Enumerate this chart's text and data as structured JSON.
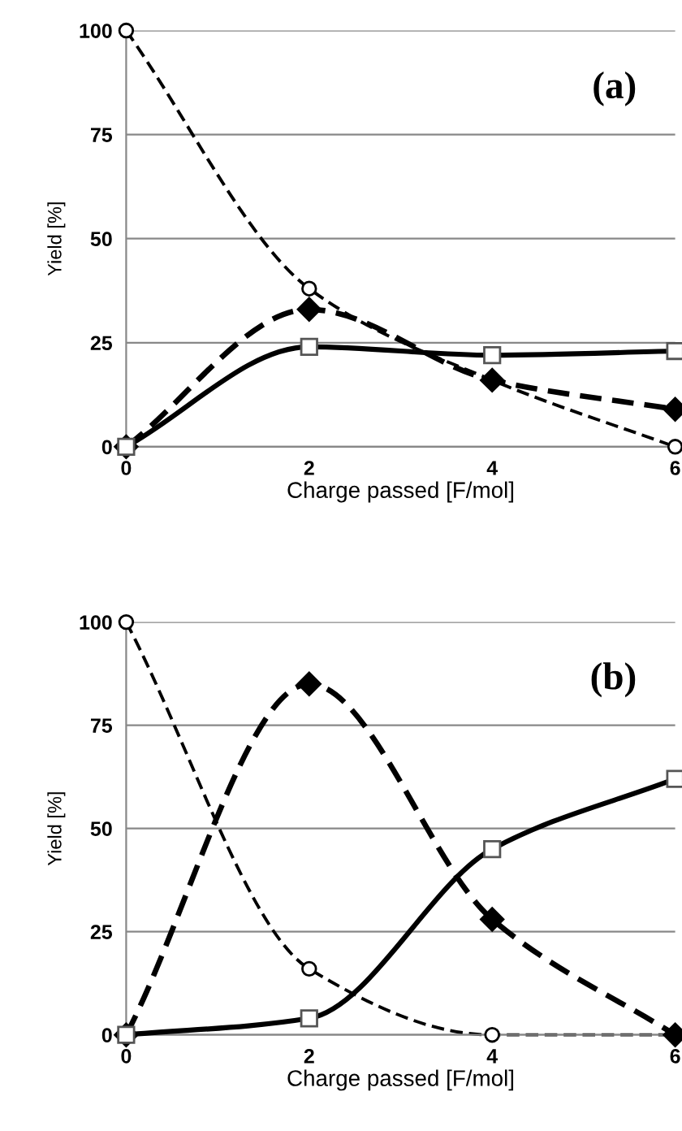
{
  "chart_data": [
    {
      "type": "line",
      "xlabel": "Charge passed [F/mol]",
      "ylabel": "Yield [%]",
      "x": [
        0,
        2,
        4,
        6
      ],
      "xlim": [
        0,
        6
      ],
      "xticks": [
        0,
        2,
        4,
        6
      ],
      "ylim": [
        0,
        100
      ],
      "yticks": [
        0,
        25,
        50,
        75,
        100
      ],
      "grid": "y",
      "annotations": [
        "(a)"
      ],
      "series": [
        {
          "color": "#000000",
          "marker": "circle",
          "line_style": "dashed",
          "values": [
            100,
            38,
            16,
            0
          ]
        },
        {
          "color": "#000000",
          "marker": "diamond",
          "line_style": "dashed",
          "values": [
            0,
            33,
            16,
            9
          ]
        },
        {
          "color": "#000000",
          "marker": "square",
          "line_style": "solid",
          "values": [
            0,
            24,
            22,
            23
          ]
        }
      ]
    },
    {
      "type": "line",
      "xlabel": "Charge passed [F/mol]",
      "ylabel": "Yield [%]",
      "x": [
        0,
        2,
        4,
        6
      ],
      "xlim": [
        0,
        6
      ],
      "xticks": [
        0,
        2,
        4,
        6
      ],
      "ylim": [
        0,
        100
      ],
      "yticks": [
        0,
        25,
        50,
        75,
        100
      ],
      "grid": "y",
      "annotations": [
        "(b)"
      ],
      "series": [
        {
          "color": "#000000",
          "marker": "circle",
          "line_style": "dashed",
          "values": [
            100,
            16,
            0,
            0
          ]
        },
        {
          "color": "#000000",
          "marker": "diamond",
          "line_style": "dashed",
          "values": [
            0,
            85,
            28,
            0
          ]
        },
        {
          "color": "#000000",
          "marker": "square",
          "line_style": "solid",
          "values": [
            0,
            4,
            45,
            62
          ]
        }
      ]
    }
  ]
}
